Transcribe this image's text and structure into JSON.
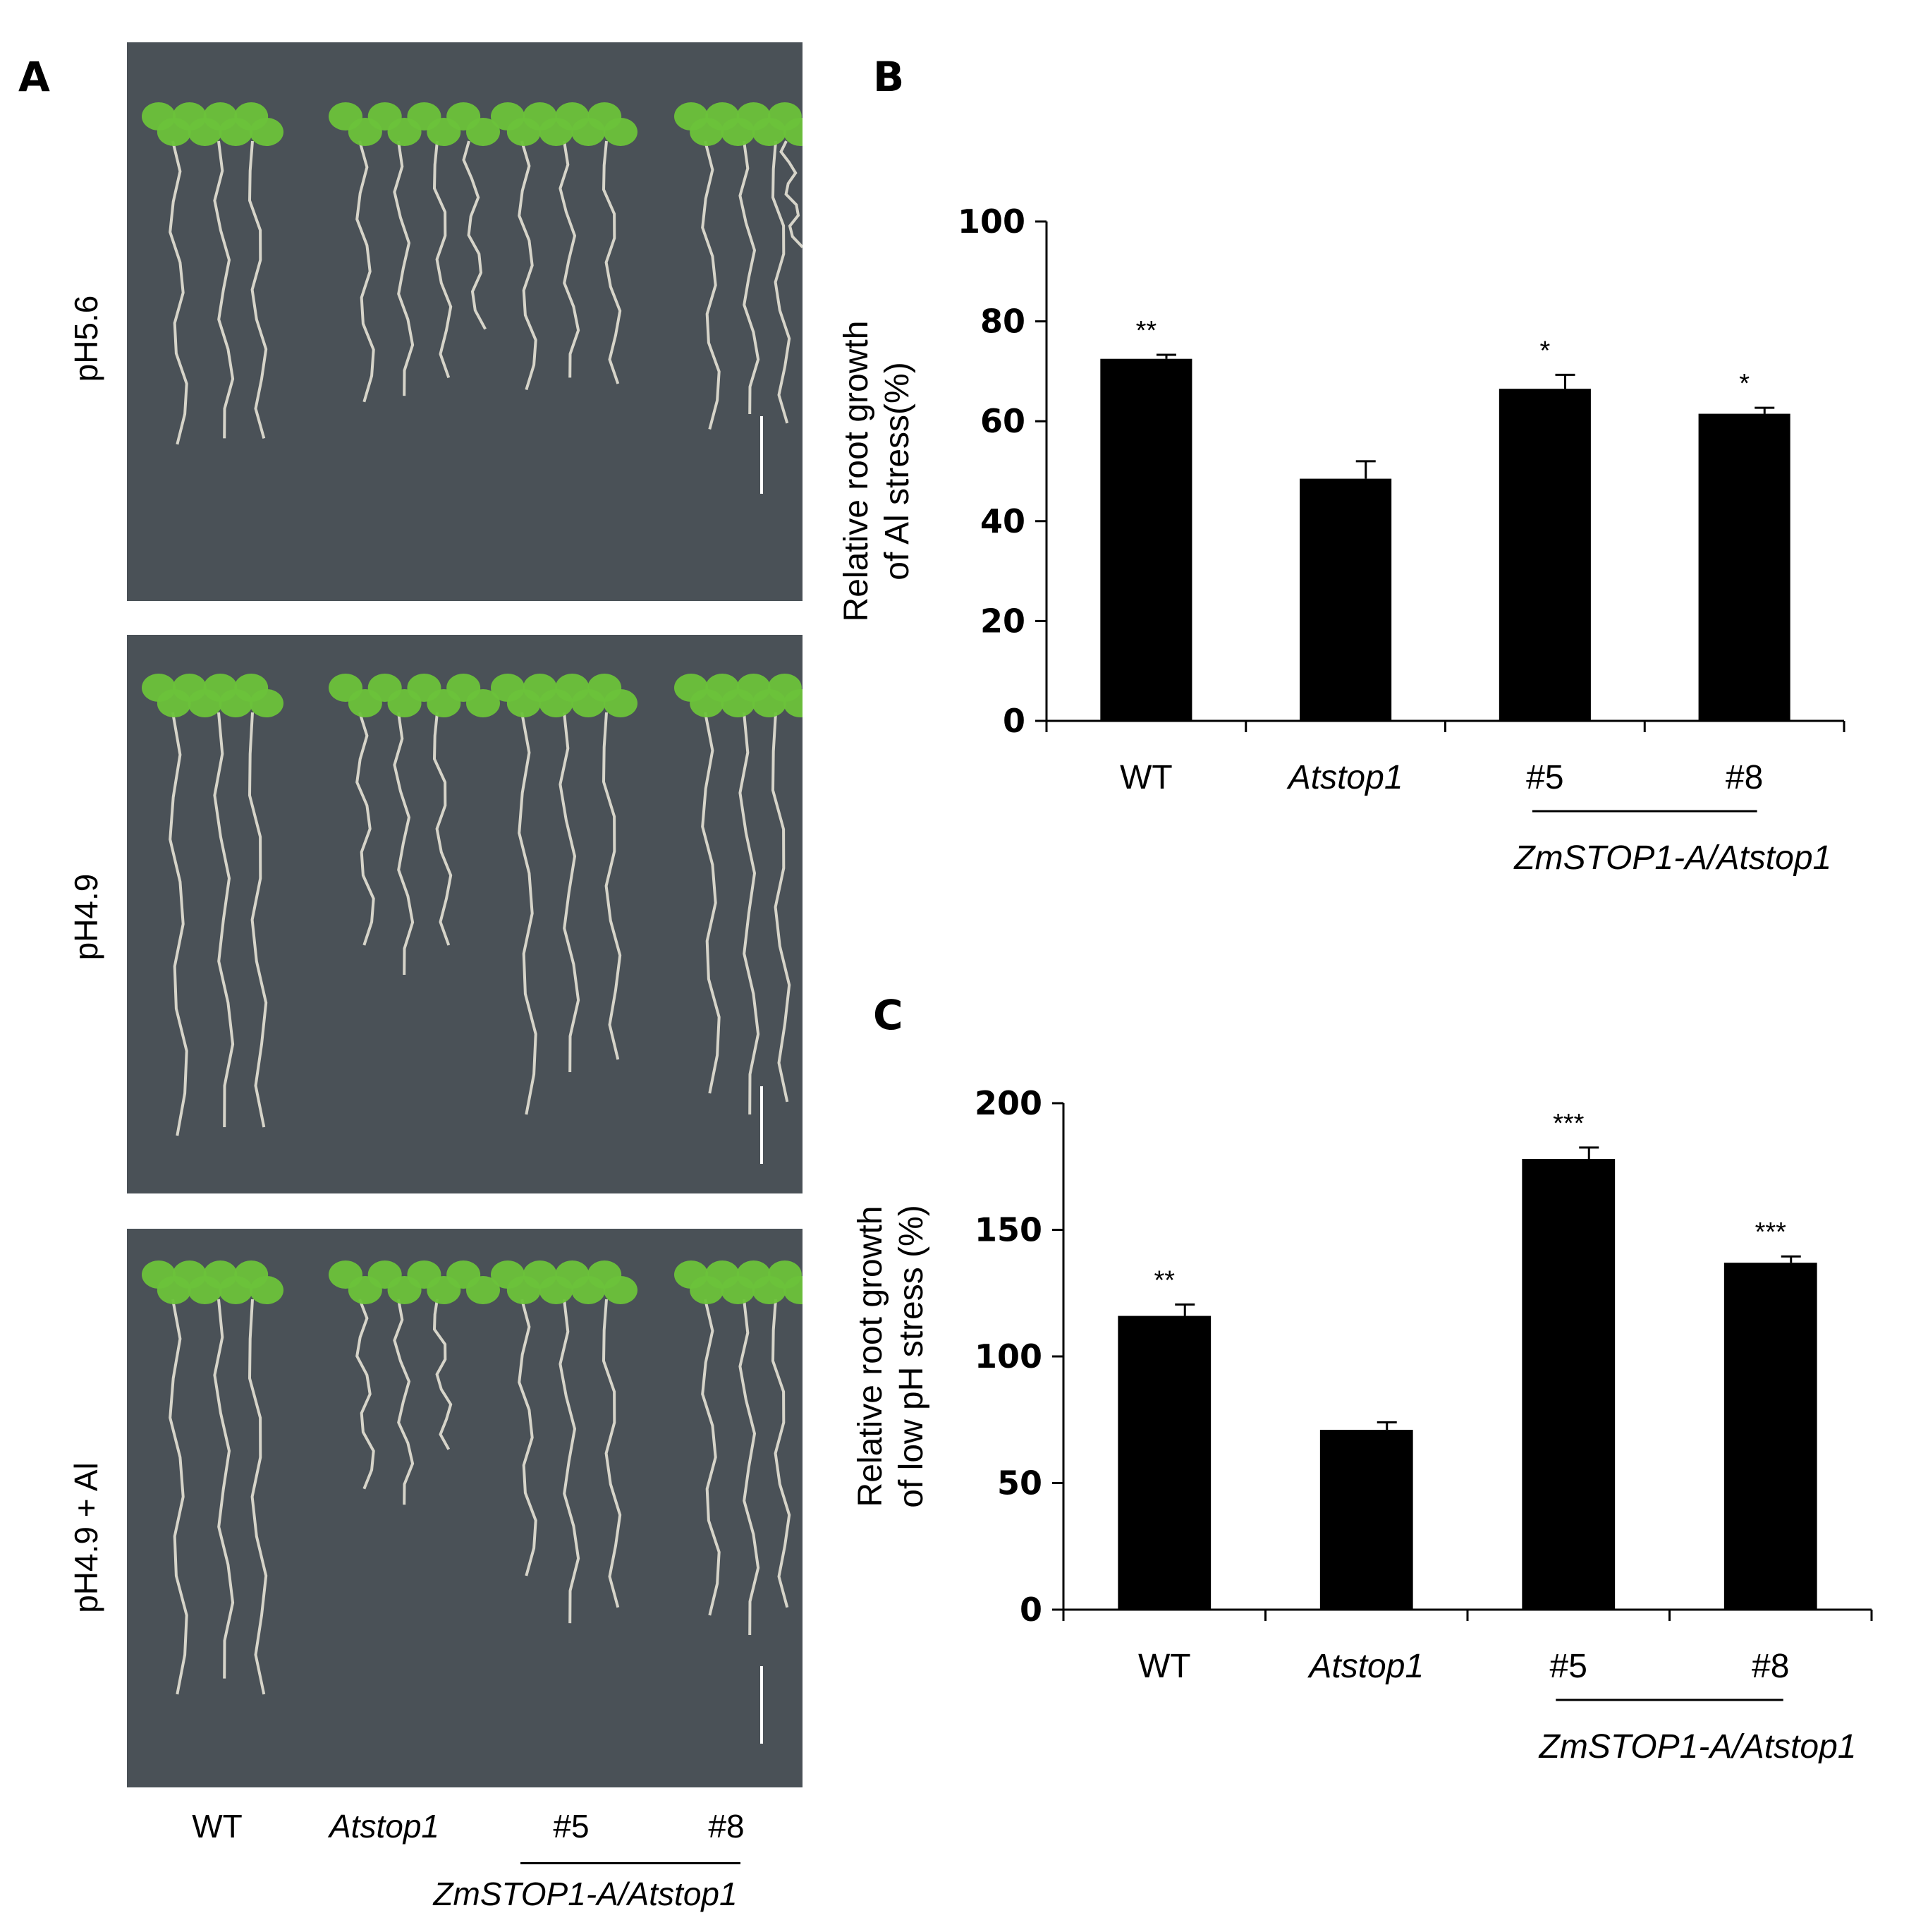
{
  "panel_a": {
    "letter": "A",
    "rows": [
      "pH5.6",
      "pH4.9",
      "pH4.9 + Al"
    ],
    "groups": [
      "WT",
      "Atstop1",
      "#5",
      "#8"
    ],
    "transgenic_label": "ZmSTOP1-A/Atstop1",
    "plate_color": "#4a5157",
    "leaf_color": "#6cc23a"
  },
  "chart_data": [
    {
      "type": "bar",
      "panel": "B",
      "categories": [
        "WT",
        "Atstop1",
        "#5",
        "#8"
      ],
      "values": [
        72.5,
        48.5,
        66.5,
        61.5
      ],
      "errors": [
        0.8,
        3.5,
        2.8,
        1.2
      ],
      "significance": [
        "**",
        "",
        "*",
        "*"
      ],
      "ylabel_lines": [
        "Relative root growth",
        "of Al stress(%)"
      ],
      "ylim": [
        0,
        100
      ],
      "yticks": [
        0,
        20,
        40,
        60,
        80,
        100
      ],
      "group_label": "ZmSTOP1-A/Atstop1",
      "bar_color": "#000000",
      "grid": false
    },
    {
      "type": "bar",
      "panel": "C",
      "categories": [
        "WT",
        "Atstop1",
        "#5",
        "#8"
      ],
      "values": [
        116,
        71,
        178,
        137
      ],
      "errors": [
        4.5,
        3,
        4.5,
        2.5
      ],
      "significance": [
        "**",
        "",
        "***",
        "***"
      ],
      "ylabel_lines": [
        "Relative root growth",
        "of low pH stress (%)"
      ],
      "ylim": [
        0,
        200
      ],
      "yticks": [
        0,
        50,
        100,
        150,
        200
      ],
      "group_label": "ZmSTOP1-A/Atstop1",
      "bar_color": "#000000",
      "grid": false
    }
  ]
}
